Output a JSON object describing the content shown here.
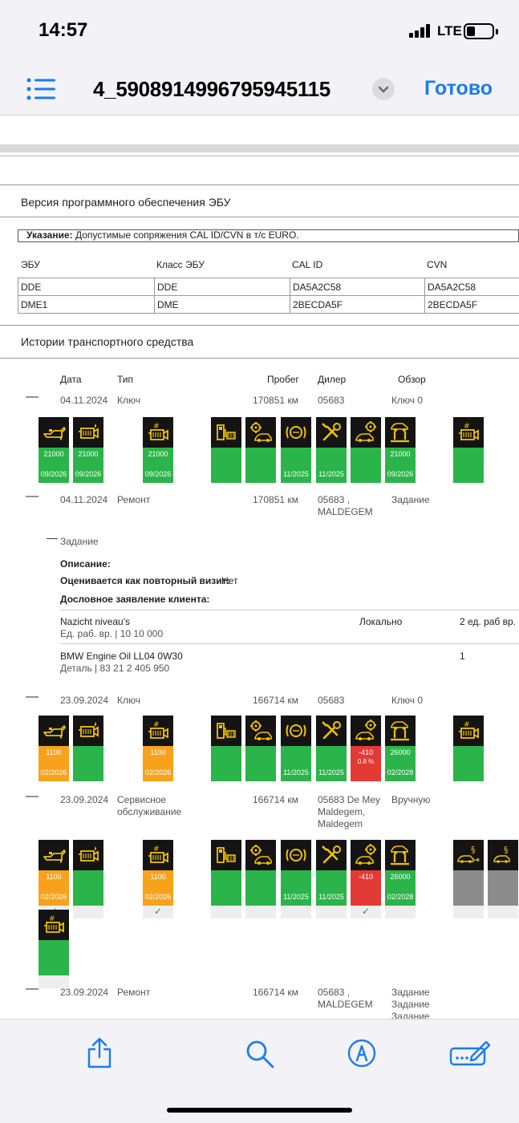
{
  "status": {
    "time": "14:57",
    "network": "LTE"
  },
  "topbar": {
    "title": "4_5908914996795945115",
    "done": "Готово"
  },
  "ecu": {
    "section_title": "Версия программного обеспечения ЭБУ",
    "note_label": "Указание:",
    "note_text": " Допустимые сопряжения CAL ID/CVN в т/с EURO.",
    "headers": [
      "ЭБУ",
      "Класс ЭБУ",
      "CAL ID",
      "CVN"
    ],
    "rows": [
      [
        "DDE",
        "DDE",
        "DA5A2C58",
        "DA5A2C58"
      ],
      [
        "DME1",
        "DME",
        "2BECDA5F",
        "2BECDA5F"
      ]
    ]
  },
  "history": {
    "section_title": "Истории транспортного средства",
    "headers": {
      "date": "Дата",
      "type": "Тип",
      "mileage": "Пробег",
      "dealer": "Дилер",
      "review": "Обзор"
    },
    "entries": [
      {
        "date": "04.11.2024",
        "type": "Ключ",
        "mileage": "170851 км",
        "dealer": "05683",
        "review": "Ключ 0"
      },
      {
        "date": "04.11.2024",
        "type": "Ремонт",
        "mileage": "170851 км",
        "dealer": "05683 ,\nMALDEGEM",
        "review": "Задание"
      },
      {
        "date": "23.09.2024",
        "type": "Ключ",
        "mileage": "166714 км",
        "dealer": "05683",
        "review": "Ключ 0"
      },
      {
        "date": "23.09.2024",
        "type": "Сервисное\nобслуживание",
        "mileage": "166714 км",
        "dealer": "05683 De Mey\nMaldegem,\nMaldegem",
        "review": "Вручную"
      },
      {
        "date": "23.09.2024",
        "type": "Ремонт",
        "mileage": "166714 км",
        "dealer": "05683 ,\nMALDEGEM",
        "review": "Задание\nЗадание\nЗадание"
      }
    ]
  },
  "task": {
    "title": "Задание",
    "description_label": "Описание:",
    "repeat_label": "Оценивается как повторный визит:",
    "repeat_value": "Нет",
    "statement_label": "Дословное заявление клиента:",
    "items": [
      {
        "name": "Nazicht niveau's",
        "sub": "Ед. раб. вр. | 10 10 000",
        "location": "Локально",
        "qty": "2 ед. раб вр."
      },
      {
        "name": "BMW Engine Oil LL04 0W30",
        "sub": "Деталь | 83 21 2 405 950",
        "location": "",
        "qty": "1"
      }
    ]
  },
  "tiles": {
    "r1": [
      {
        "i": "oil",
        "c": "g",
        "v1": "21000",
        "v2": "09/2026"
      },
      {
        "i": "filter",
        "c": "g",
        "v1": "21000",
        "v2": "09/2026"
      },
      {
        "i": "hash",
        "c": "g",
        "v1": "21000",
        "v2": "09/2026"
      },
      {
        "i": "fuel",
        "c": "g",
        "v1": "",
        "v2": ""
      },
      {
        "i": "gear",
        "c": "g",
        "v1": "",
        "v2": ""
      },
      {
        "i": "brake",
        "c": "g",
        "v1": "",
        "v2": "11/2025"
      },
      {
        "i": "tools",
        "c": "g",
        "v1": "",
        "v2": "11/2025"
      },
      {
        "i": "cargear",
        "c": "g",
        "v1": "",
        "v2": ""
      },
      {
        "i": "lift",
        "c": "g",
        "v1": "21000",
        "v2": "09/2026"
      },
      {
        "i": "hash",
        "c": "g",
        "v1": "",
        "v2": ""
      }
    ],
    "r2": [
      {
        "i": "oil",
        "c": "o",
        "v1": "1100",
        "v2": "02/2026"
      },
      {
        "i": "filter",
        "c": "g",
        "v1": "",
        "v2": ""
      },
      {
        "i": "hash",
        "c": "o",
        "v1": "1100",
        "v2": "02/2026"
      },
      {
        "i": "fuel",
        "c": "g",
        "v1": "",
        "v2": ""
      },
      {
        "i": "gear",
        "c": "g",
        "v1": "",
        "v2": ""
      },
      {
        "i": "brake",
        "c": "g",
        "v1": "",
        "v2": "11/2025"
      },
      {
        "i": "tools",
        "c": "g",
        "v1": "",
        "v2": "11/2025"
      },
      {
        "i": "cargear",
        "c": "r",
        "v1": "-410",
        "v1b": "0.8 %",
        "v2": ""
      },
      {
        "i": "lift",
        "c": "g",
        "v1": "26000",
        "v2": "02/2028"
      },
      {
        "i": "hash",
        "c": "g",
        "v1": "",
        "v2": ""
      }
    ],
    "r3": [
      {
        "i": "oil",
        "c": "o",
        "v1": "1100",
        "v2": "02/2026",
        "k": "✓"
      },
      {
        "i": "filter",
        "c": "g",
        "v1": "",
        "v2": "",
        "k": ""
      },
      {
        "i": "hash",
        "c": "o",
        "v1": "1100",
        "v2": "02/2026",
        "k": "✓"
      },
      {
        "i": "fuel",
        "c": "g",
        "v1": "",
        "v2": "",
        "k": ""
      },
      {
        "i": "gear",
        "c": "g",
        "v1": "",
        "v2": "",
        "k": ""
      },
      {
        "i": "brake",
        "c": "g",
        "v1": "",
        "v2": "11/2025",
        "k": ""
      },
      {
        "i": "tools",
        "c": "g",
        "v1": "",
        "v2": "11/2025",
        "k": ""
      },
      {
        "i": "cargear",
        "c": "r",
        "v1": "-410",
        "v2": "",
        "k": "✓"
      },
      {
        "i": "lift",
        "c": "g",
        "v1": "26000",
        "v2": "02/2028",
        "k": ""
      },
      {
        "i": "carpar",
        "c": "gy",
        "v1": "",
        "v2": "",
        "k": ""
      },
      {
        "i": "carpar2",
        "c": "gy",
        "v1": "",
        "v2": "",
        "k": ""
      },
      {
        "i": "hash",
        "c": "g",
        "v1": "",
        "v2": "",
        "k": ""
      }
    ]
  },
  "colors": {
    "accent": "#1a7cf0",
    "green": "#2bb44a",
    "orange": "#f7a21a",
    "red": "#e43a36",
    "gray": "#8c8c8c",
    "icon": "#f2c200"
  }
}
